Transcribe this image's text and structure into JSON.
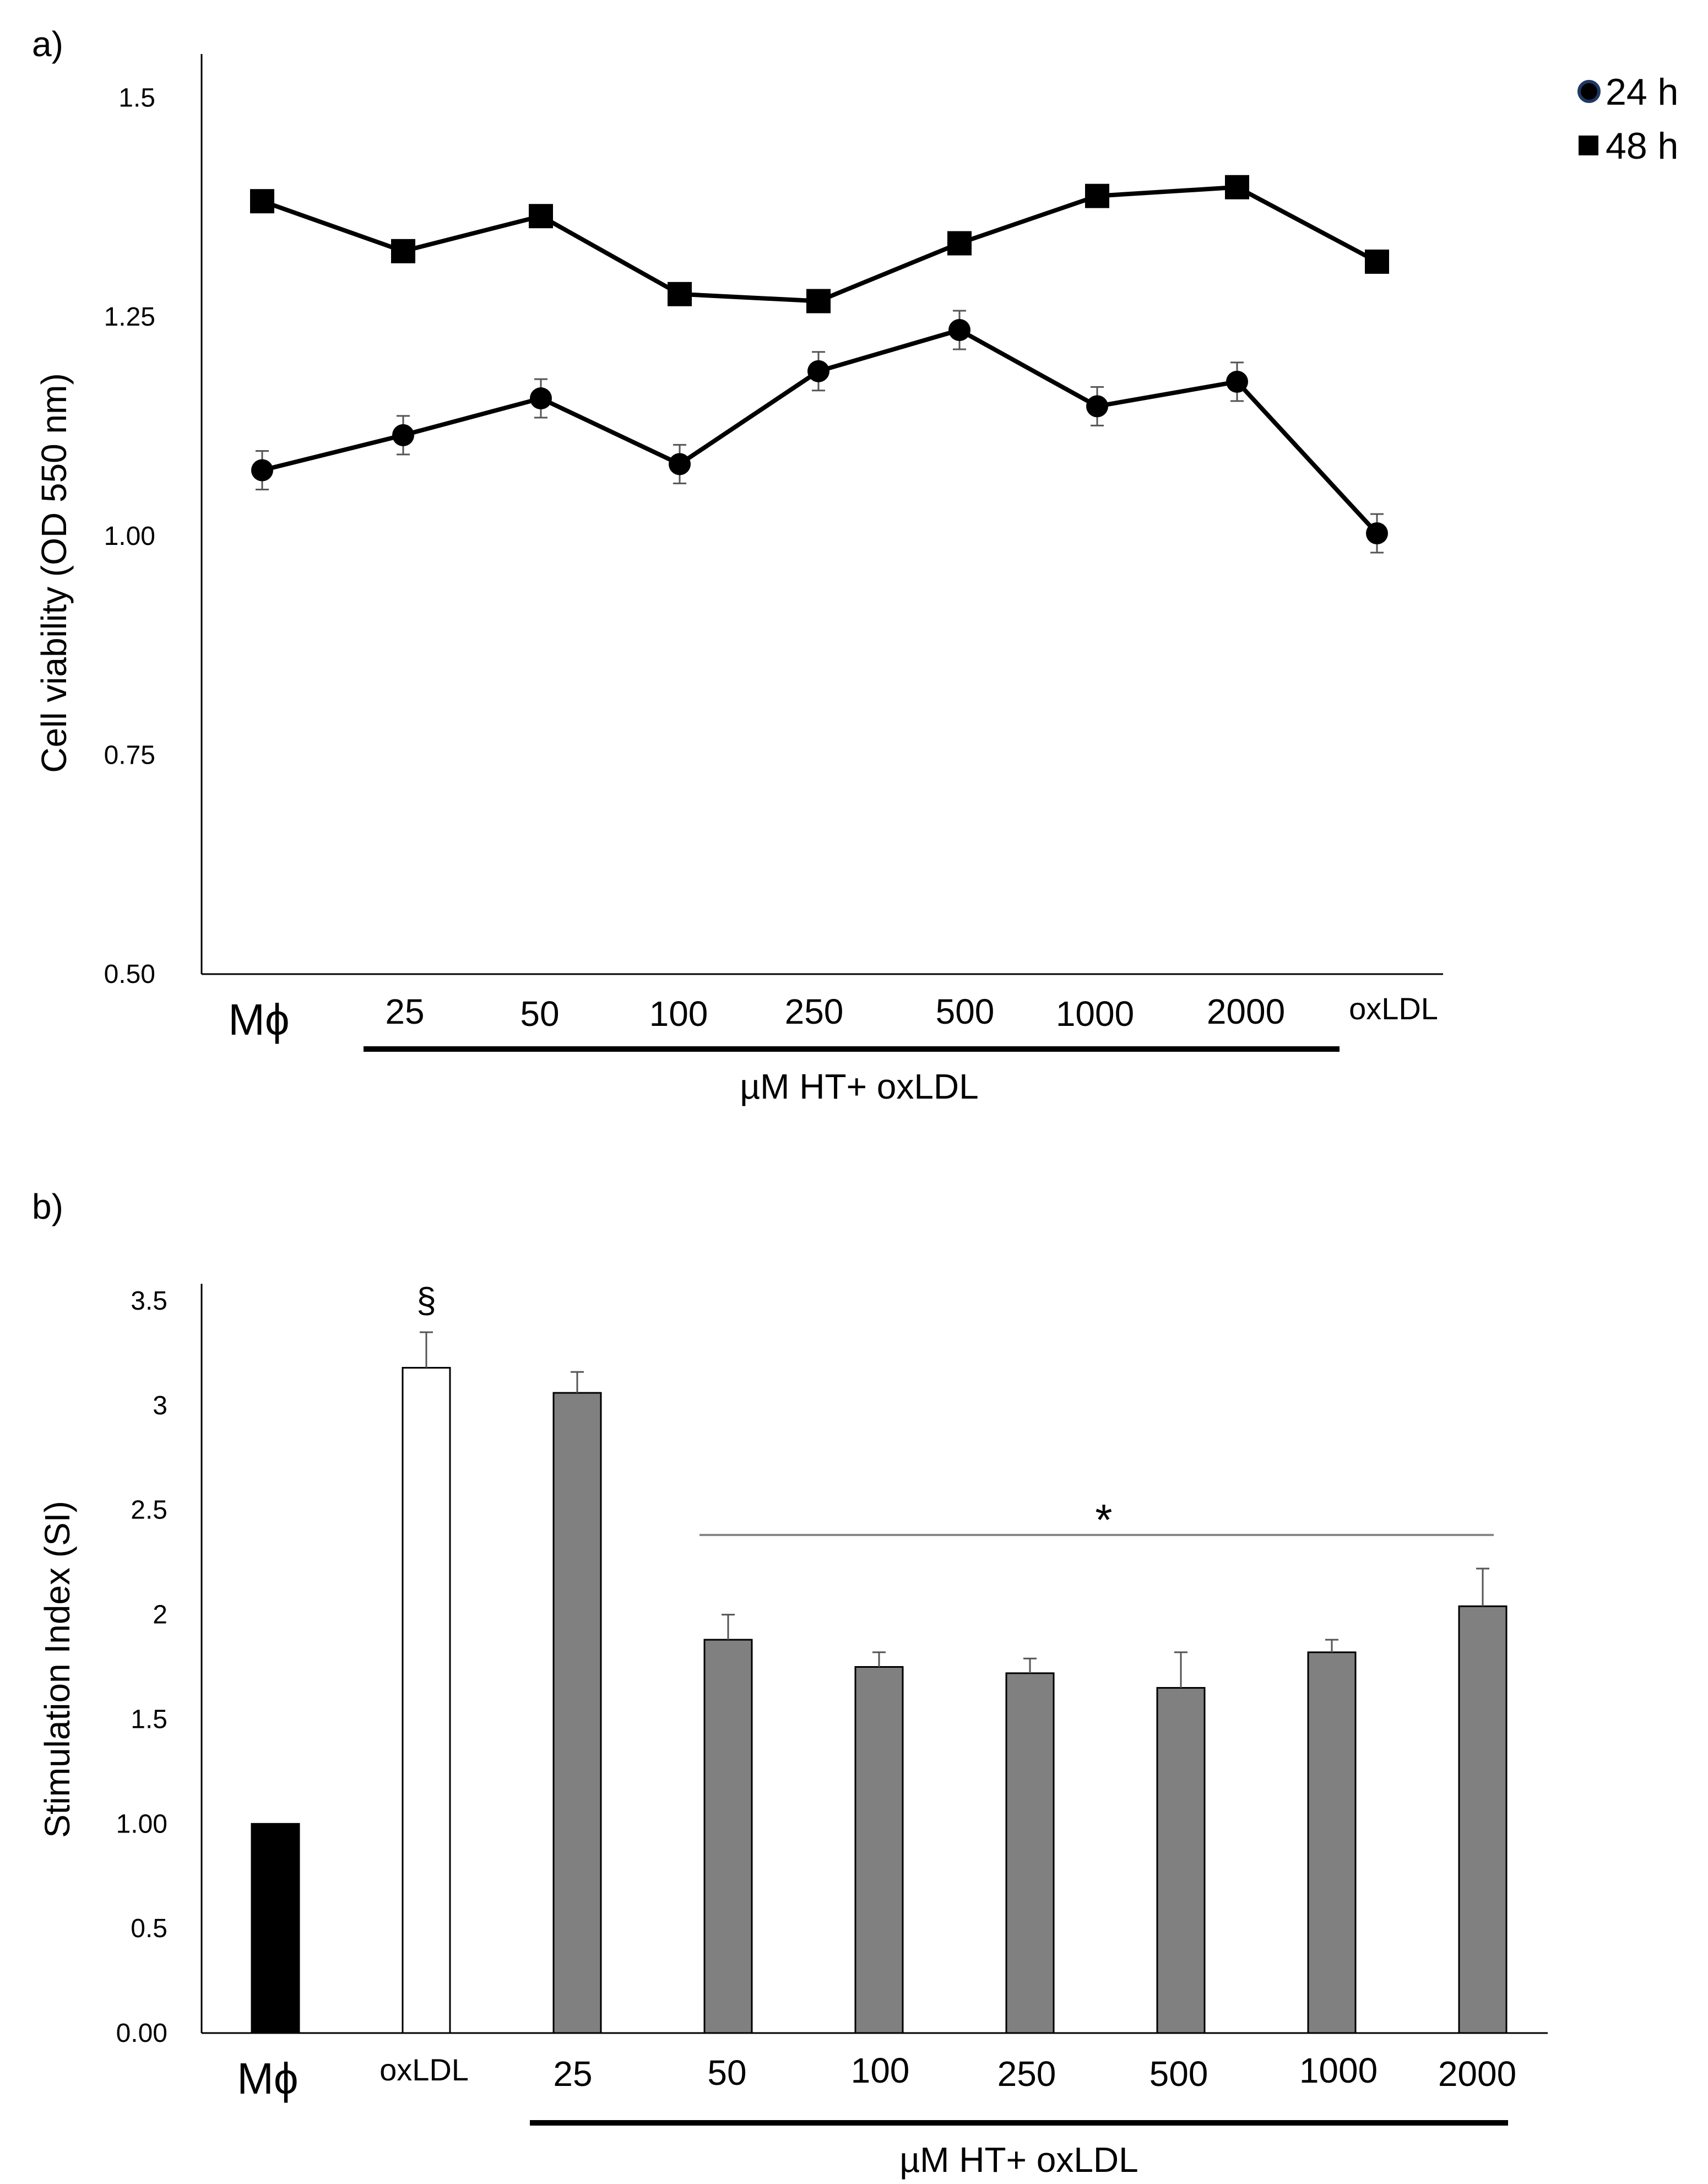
{
  "colors": {
    "ink": "#000000",
    "bar_control": "#000000",
    "bar_oxldl": "#ffffff",
    "bar_treatment": "#808080",
    "errorbar": "#555555"
  },
  "chart_data": [
    {
      "panel": "a)",
      "type": "line",
      "ylabel": "Cell viability (OD 550 nm)",
      "ylim": [
        0.5,
        1.55
      ],
      "yticks": [
        0.5,
        0.75,
        1.0,
        1.25,
        1.5
      ],
      "ytick_labels": [
        "0.50",
        "0.75",
        "1.00",
        "1.25",
        "1.5"
      ],
      "categories": [
        "Mϕ",
        "25",
        "50",
        "100",
        "250",
        "500",
        "1000",
        "2000",
        "oxLDL"
      ],
      "bracket_label": "µM HT+ oxLDL",
      "series": [
        {
          "name": "24 h",
          "legend": "24 h",
          "marker": "circle",
          "values": [
            1.075,
            1.115,
            1.157,
            1.082,
            1.188,
            1.235,
            1.148,
            1.176,
            1.003
          ],
          "errors": [
            0.022,
            0.022,
            0.022,
            0.022,
            0.022,
            0.022,
            0.022,
            0.022,
            0.022
          ]
        },
        {
          "name": "48 h",
          "legend": "48 h",
          "marker": "square",
          "values": [
            1.382,
            1.325,
            1.365,
            1.276,
            1.268,
            1.334,
            1.388,
            1.398,
            1.313
          ],
          "errors": [
            0.01,
            0.01,
            0.01,
            0.01,
            0.01,
            0.01,
            0.01,
            0.01,
            0.01
          ]
        }
      ]
    },
    {
      "panel": "b)",
      "type": "bar",
      "ylabel": "Stimulation Index (SI)",
      "ylim": [
        0,
        3.5
      ],
      "yticks": [
        0,
        0.5,
        1,
        1.5,
        2,
        2.5,
        3,
        3.5
      ],
      "ytick_labels": [
        "0.00",
        "0.5",
        "1.00",
        "1.5",
        "2",
        "2.5",
        "3",
        "3.5"
      ],
      "categories": [
        "Mϕ",
        "oxLDL",
        "25",
        "50",
        "100",
        "250",
        "500",
        "1000",
        "2000"
      ],
      "values": [
        1.0,
        3.18,
        3.06,
        1.88,
        1.75,
        1.72,
        1.65,
        1.82,
        2.04
      ],
      "errors": [
        0.0,
        0.17,
        0.1,
        0.12,
        0.07,
        0.07,
        0.17,
        0.06,
        0.18
      ],
      "bar_colors": [
        "control",
        "oxldl",
        "treatment",
        "treatment",
        "treatment",
        "treatment",
        "treatment",
        "treatment",
        "treatment"
      ],
      "bracket_label": "µM HT+ oxLDL",
      "annotations": {
        "oxldl_mark": "§",
        "significance_mark": "*"
      }
    }
  ]
}
